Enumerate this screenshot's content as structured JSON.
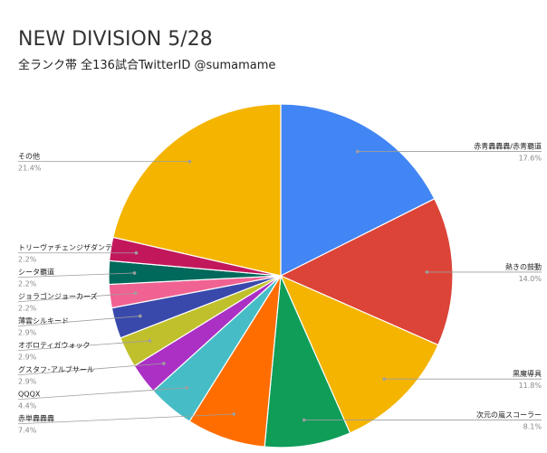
{
  "chart_data": {
    "type": "pie",
    "title": "NEW DIVISION 5/28",
    "subtitle": "全ランク帯 全136試合TwitterID @sumamame",
    "slices": [
      {
        "name": "赤青轟轟轟/赤青覇道",
        "value": 17.6,
        "label": "17.6%",
        "color": "#4285f4"
      },
      {
        "name": "熱きの鼓動",
        "value": 14.0,
        "label": "14.0%",
        "color": "#db4437"
      },
      {
        "name": "黒魔導具",
        "value": 11.8,
        "label": "11.8%",
        "color": "#f4b400"
      },
      {
        "name": "次元の嵐スコーラー",
        "value": 8.1,
        "label": "8.1%",
        "color": "#0f9d58"
      },
      {
        "name": "赤単轟轟轟",
        "value": 7.4,
        "label": "7.4%",
        "color": "#ff6d00"
      },
      {
        "name": "QQQX",
        "value": 4.4,
        "label": "4.4%",
        "color": "#46bdc6"
      },
      {
        "name": "グスタフ･アルブサール",
        "value": 2.9,
        "label": "2.9%",
        "color": "#ab30c4"
      },
      {
        "name": "オボロティガウォック",
        "value": 2.9,
        "label": "2.9%",
        "color": "#c0c02c"
      },
      {
        "name": "薄雲シルキード",
        "value": 2.9,
        "label": "2.9%",
        "color": "#3949ab"
      },
      {
        "name": "ジョラゴンジョーカーズ",
        "value": 2.2,
        "label": "2.2%",
        "color": "#f06292"
      },
      {
        "name": "シータ覇道",
        "value": 2.2,
        "label": "2.2%",
        "color": "#00695c"
      },
      {
        "name": "トリーヴァチェンジザダンテ",
        "value": 2.2,
        "label": "2.2%",
        "color": "#c2185b"
      },
      {
        "name": "その他",
        "value": 21.4,
        "label": "21.4%",
        "color": "#f4b400"
      }
    ]
  }
}
